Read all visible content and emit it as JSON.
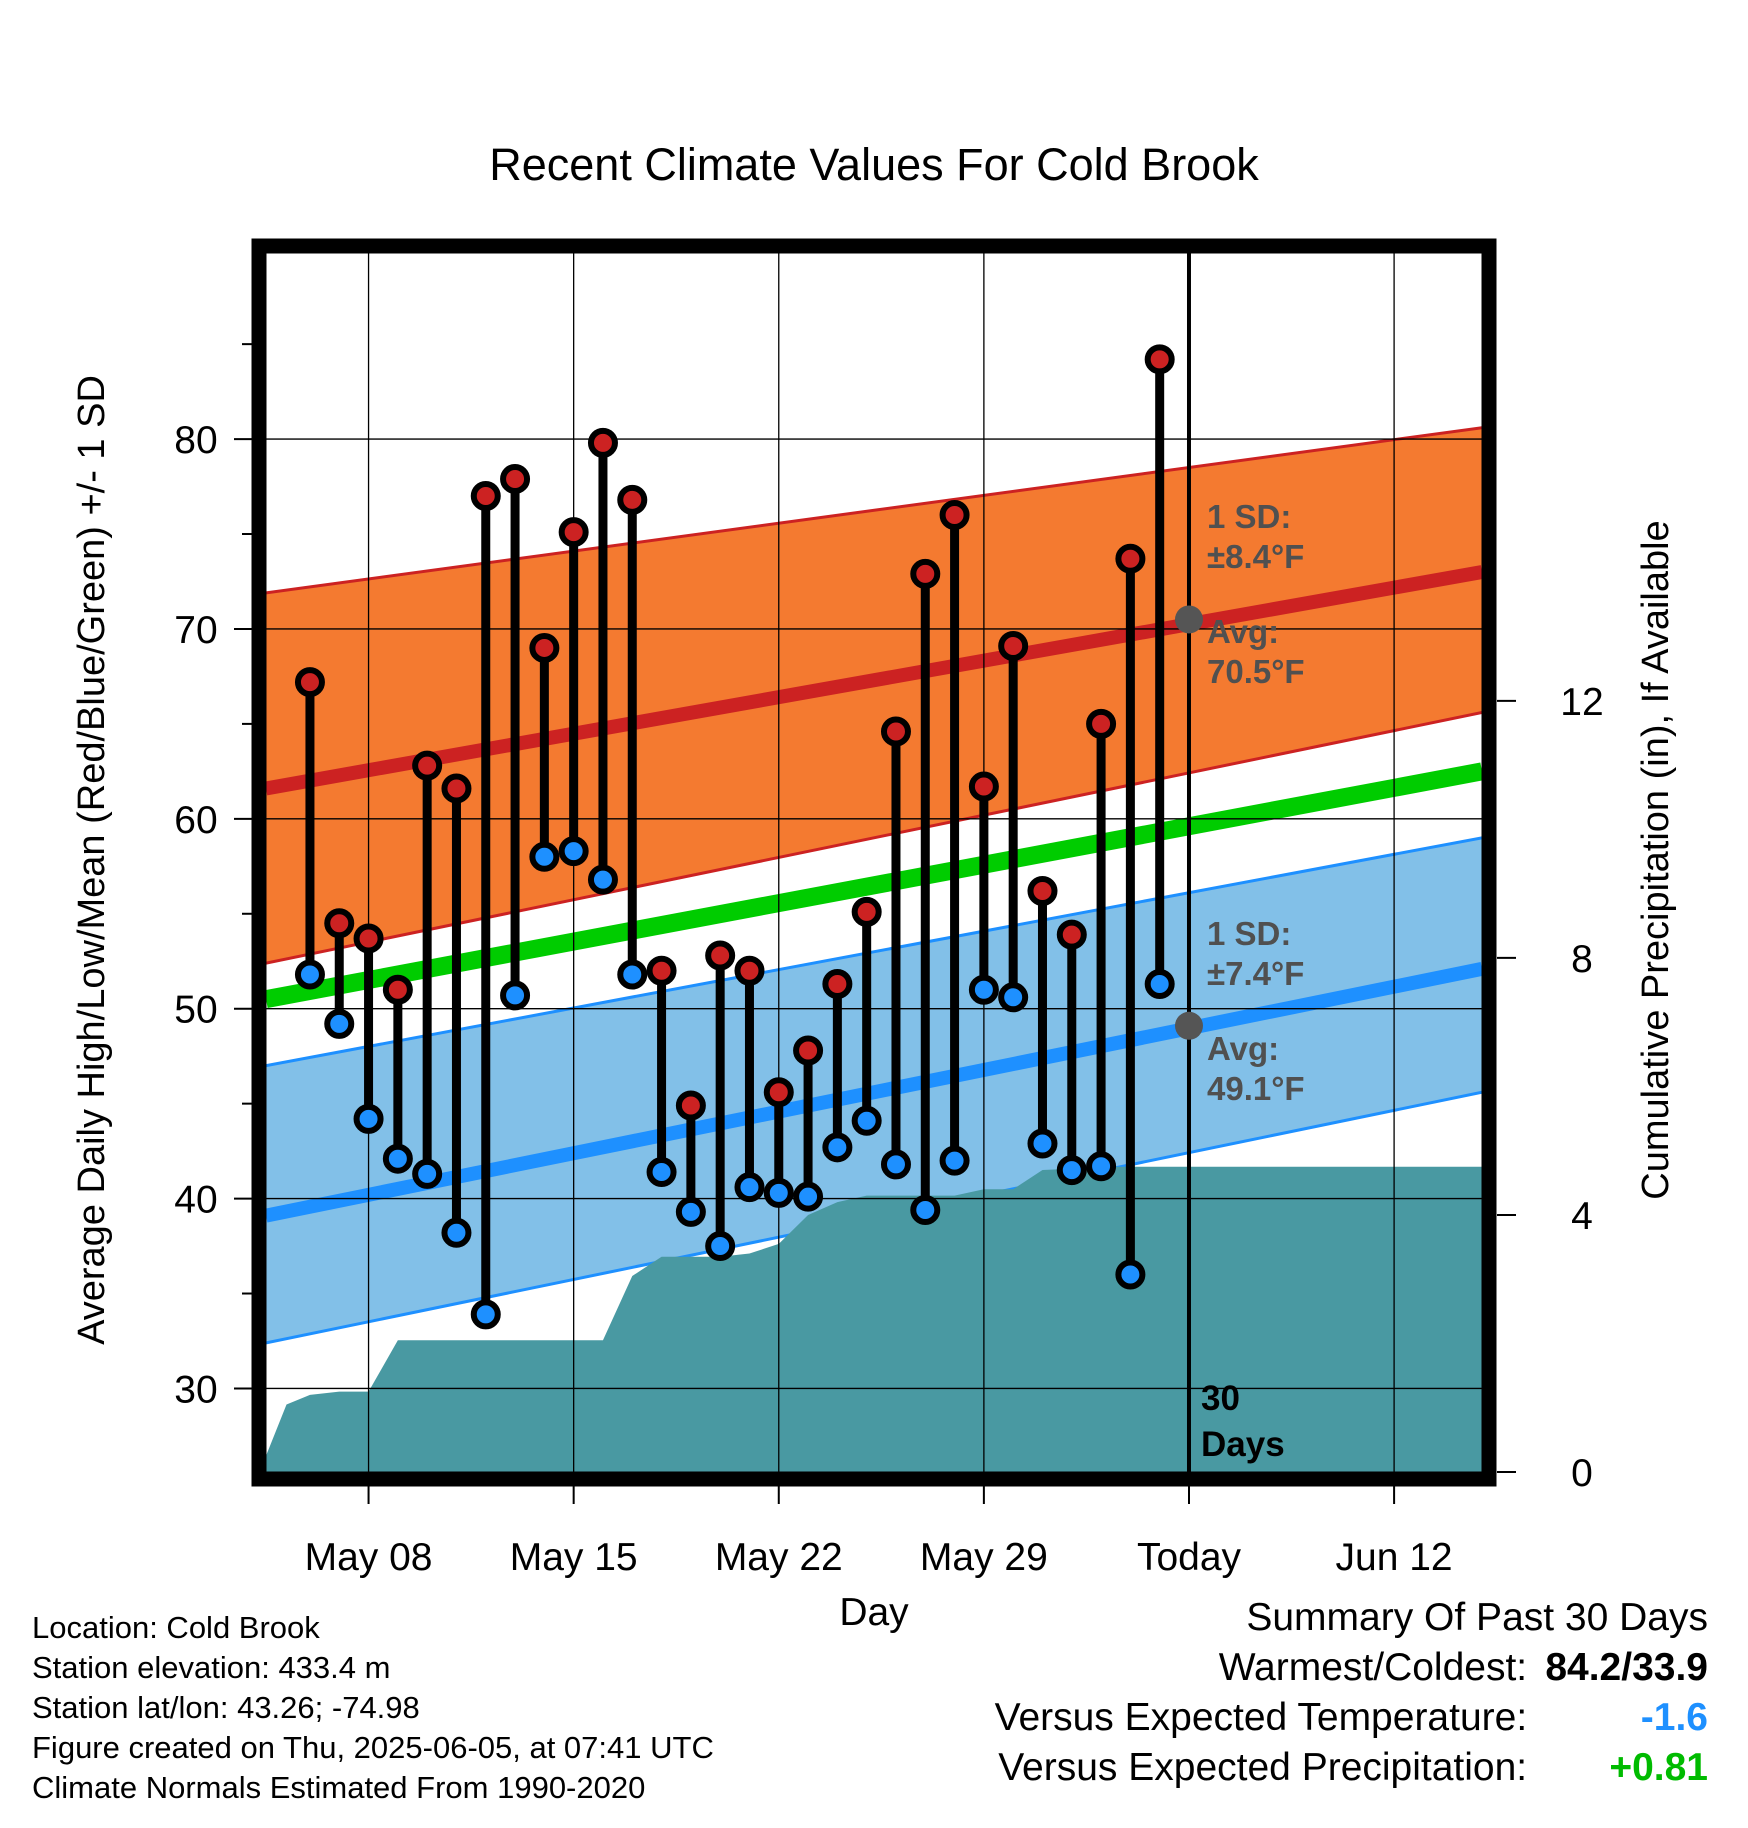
{
  "chart_data": {
    "type": "line",
    "title": "Recent Climate Values For Cold Brook",
    "xlabel": "Day",
    "ylabel": "Average Daily High/Low/Mean (Red/Blue/Green) +/- 1 SD",
    "y2label": "Cumulative Precipitation (in), If Available",
    "ylim": [
      25.6,
      89.8
    ],
    "y2lim": [
      0,
      18.97
    ],
    "xlim": [
      -31.5,
      10
    ],
    "yticks": [
      30,
      40,
      50,
      60,
      70,
      80
    ],
    "y2ticks": [
      0,
      4,
      8,
      12
    ],
    "xticks": [
      {
        "day": -28,
        "label": "May 08"
      },
      {
        "day": -21,
        "label": "May 15"
      },
      {
        "day": -14,
        "label": "May 22"
      },
      {
        "day": -7,
        "label": "May 29"
      },
      {
        "day": 0,
        "label": "Today"
      },
      {
        "day": 7,
        "label": "Jun 12"
      }
    ],
    "grid": true,
    "today_line_label": "30 Days",
    "normals": {
      "x": [
        -31.5,
        10
      ],
      "high_mean": [
        61.6,
        73.0
      ],
      "high_upper": [
        71.9,
        80.6
      ],
      "high_lower": [
        52.4,
        65.6
      ],
      "low_mean": [
        39.1,
        52.1
      ],
      "low_upper": [
        47.0,
        59.0
      ],
      "low_lower": [
        32.4,
        45.6
      ],
      "overall_mean": [
        50.5,
        62.5
      ]
    },
    "daily": [
      {
        "day": -30,
        "high": 67.2,
        "low": 51.8
      },
      {
        "day": -29,
        "high": 54.5,
        "low": 49.2
      },
      {
        "day": -28,
        "high": 53.7,
        "low": 44.2
      },
      {
        "day": -27,
        "high": 51.0,
        "low": 42.1
      },
      {
        "day": -26,
        "high": 62.8,
        "low": 41.3
      },
      {
        "day": -25,
        "high": 61.6,
        "low": 38.2
      },
      {
        "day": -24,
        "high": 77.0,
        "low": 33.9
      },
      {
        "day": -23,
        "high": 77.9,
        "low": 50.7
      },
      {
        "day": -22,
        "high": 69.0,
        "low": 58.0
      },
      {
        "day": -21,
        "high": 75.1,
        "low": 58.3
      },
      {
        "day": -20,
        "high": 79.8,
        "low": 56.8
      },
      {
        "day": -19,
        "high": 76.8,
        "low": 51.8
      },
      {
        "day": -18,
        "high": 52.0,
        "low": 41.4
      },
      {
        "day": -17,
        "high": 44.9,
        "low": 39.3
      },
      {
        "day": -16,
        "high": 52.8,
        "low": 37.5
      },
      {
        "day": -15,
        "high": 52.0,
        "low": 40.6
      },
      {
        "day": -14,
        "high": 45.6,
        "low": 40.3
      },
      {
        "day": -13,
        "high": 47.8,
        "low": 40.1
      },
      {
        "day": -12,
        "high": 51.3,
        "low": 42.7
      },
      {
        "day": -11,
        "high": 55.1,
        "low": 44.1
      },
      {
        "day": -10,
        "high": 64.6,
        "low": 41.8
      },
      {
        "day": -9,
        "high": 72.9,
        "low": 39.4
      },
      {
        "day": -8,
        "high": 76.0,
        "low": 42.0
      },
      {
        "day": -7,
        "high": 61.7,
        "low": 51.0
      },
      {
        "day": -6,
        "high": 69.1,
        "low": 50.6
      },
      {
        "day": -5,
        "high": 56.2,
        "low": 42.9
      },
      {
        "day": -4,
        "high": 53.9,
        "low": 41.5
      },
      {
        "day": -3,
        "high": 65.0,
        "low": 41.7
      },
      {
        "day": -2,
        "high": 73.7,
        "low": 36.0
      },
      {
        "day": -1,
        "high": 84.2,
        "low": 51.3
      }
    ],
    "precip": {
      "x": [
        -31.5,
        -30.8,
        -30,
        -29,
        -28,
        -27,
        -26,
        -25,
        -24,
        -23,
        -22,
        -21,
        -20,
        -19,
        -18,
        -17,
        -16,
        -15,
        -14,
        -13,
        -12,
        -11,
        -10,
        -9,
        -8,
        -7,
        -6,
        -5,
        -4,
        -3,
        -2,
        -1,
        0,
        10
      ],
      "values": [
        0.25,
        1.05,
        1.2,
        1.25,
        1.25,
        2.05,
        2.05,
        2.05,
        2.05,
        2.05,
        2.05,
        2.05,
        2.05,
        3.05,
        3.35,
        3.35,
        3.35,
        3.4,
        3.55,
        4.0,
        4.2,
        4.3,
        4.3,
        4.3,
        4.3,
        4.4,
        4.4,
        4.7,
        4.72,
        4.75,
        4.75,
        4.75,
        4.75,
        4.75
      ]
    },
    "annotations": {
      "high_sd_heading": "1 SD:",
      "high_sd_value": "±8.4",
      "high_avg_heading": "Avg:",
      "high_avg_value": "70.5",
      "high_avg_number": 70.5,
      "low_sd_heading": "1 SD:",
      "low_sd_value": "±7.4",
      "low_avg_heading": "Avg:",
      "low_avg_value": "49.1",
      "low_avg_number": 49.1,
      "unit": "°F"
    },
    "colors": {
      "high_band": "#f47a30",
      "high_line": "#cc2222",
      "low_band": "#82c0e8",
      "low_line": "#1e90ff",
      "overall_line": "#00cc00",
      "precip_fill": "#4999a2",
      "high_marker": "#cc2222",
      "low_marker": "#1e90ff",
      "annotation_text": "#505050"
    }
  },
  "info": {
    "location": "Location: Cold Brook",
    "elevation": "Station elevation: 433.4 m",
    "latlon": "Station lat/lon: 43.26; -74.98",
    "created": "Figure created on Thu, 2025-06-05, at 07:41 UTC",
    "normals": "Climate Normals Estimated From 1990-2020"
  },
  "summary": {
    "heading": "Summary Of Past 30 Days",
    "warm_cold_label": "Warmest/Coldest:",
    "warm_cold_value": "84.2/33.9",
    "temp_label": "Versus Expected Temperature:",
    "temp_value": "-1.6",
    "temp_color": "#1e90ff",
    "precip_label": "Versus Expected Precipitation:",
    "precip_value": "+0.81",
    "precip_color": "#00bb00"
  }
}
